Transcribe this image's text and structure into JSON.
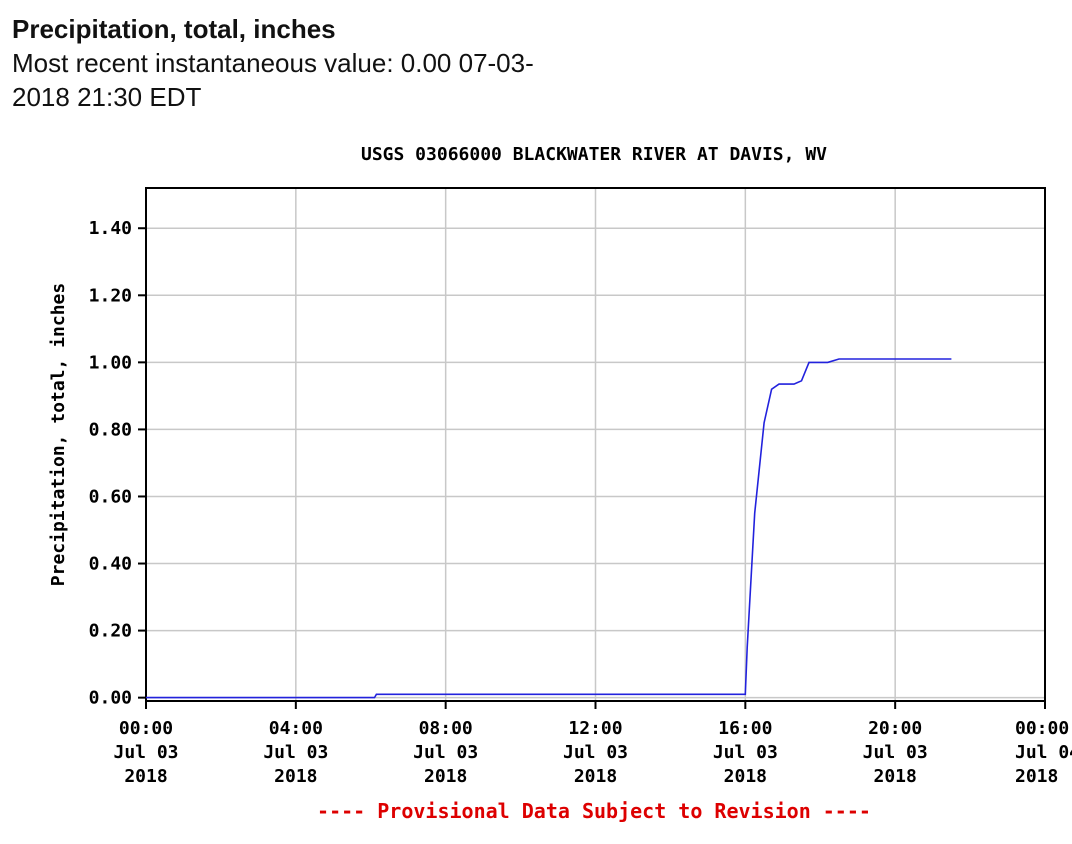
{
  "header": {
    "title": "Precipitation, total, inches",
    "recent_line1": "Most recent instantaneous value: 0.00 07-03-",
    "recent_line2": "2018   21:30 EDT"
  },
  "chart_data": {
    "type": "line",
    "title": "USGS 03066000 BLACKWATER RIVER AT DAVIS, WV",
    "ylabel": "Precipitation, total, inches",
    "xlabel": "",
    "xlim_hours": [
      0,
      24
    ],
    "ylim": [
      -0.01,
      1.52
    ],
    "yticks": [
      "0.00",
      "0.20",
      "0.40",
      "0.60",
      "0.80",
      "1.00",
      "1.20",
      "1.40"
    ],
    "ytick_values": [
      0,
      0.2,
      0.4,
      0.6,
      0.8,
      1.0,
      1.2,
      1.4
    ],
    "xtick_hours": [
      0,
      4,
      8,
      12,
      16,
      20,
      24
    ],
    "xticks": [
      [
        "00:00",
        "Jul 03",
        "2018"
      ],
      [
        "04:00",
        "Jul 03",
        "2018"
      ],
      [
        "08:00",
        "Jul 03",
        "2018"
      ],
      [
        "12:00",
        "Jul 03",
        "2018"
      ],
      [
        "16:00",
        "Jul 03",
        "2018"
      ],
      [
        "20:00",
        "Jul 03",
        "2018"
      ],
      [
        "00:00",
        "Jul 04",
        "2018"
      ]
    ],
    "grid": true,
    "line_color": "#2222dd",
    "series": [
      {
        "x_hours": [
          0,
          6.1,
          6.15,
          16.0,
          16.05,
          16.25,
          16.5,
          16.7,
          16.9,
          17.3,
          17.5,
          17.7,
          18.2,
          18.5,
          21.5
        ],
        "values": [
          0.0,
          0.0,
          0.01,
          0.01,
          0.15,
          0.55,
          0.82,
          0.92,
          0.935,
          0.935,
          0.945,
          1.0,
          1.0,
          1.01,
          1.01
        ]
      }
    ],
    "footer_note": "---- Provisional Data Subject to Revision ----",
    "footer_color": "#dd0000"
  }
}
